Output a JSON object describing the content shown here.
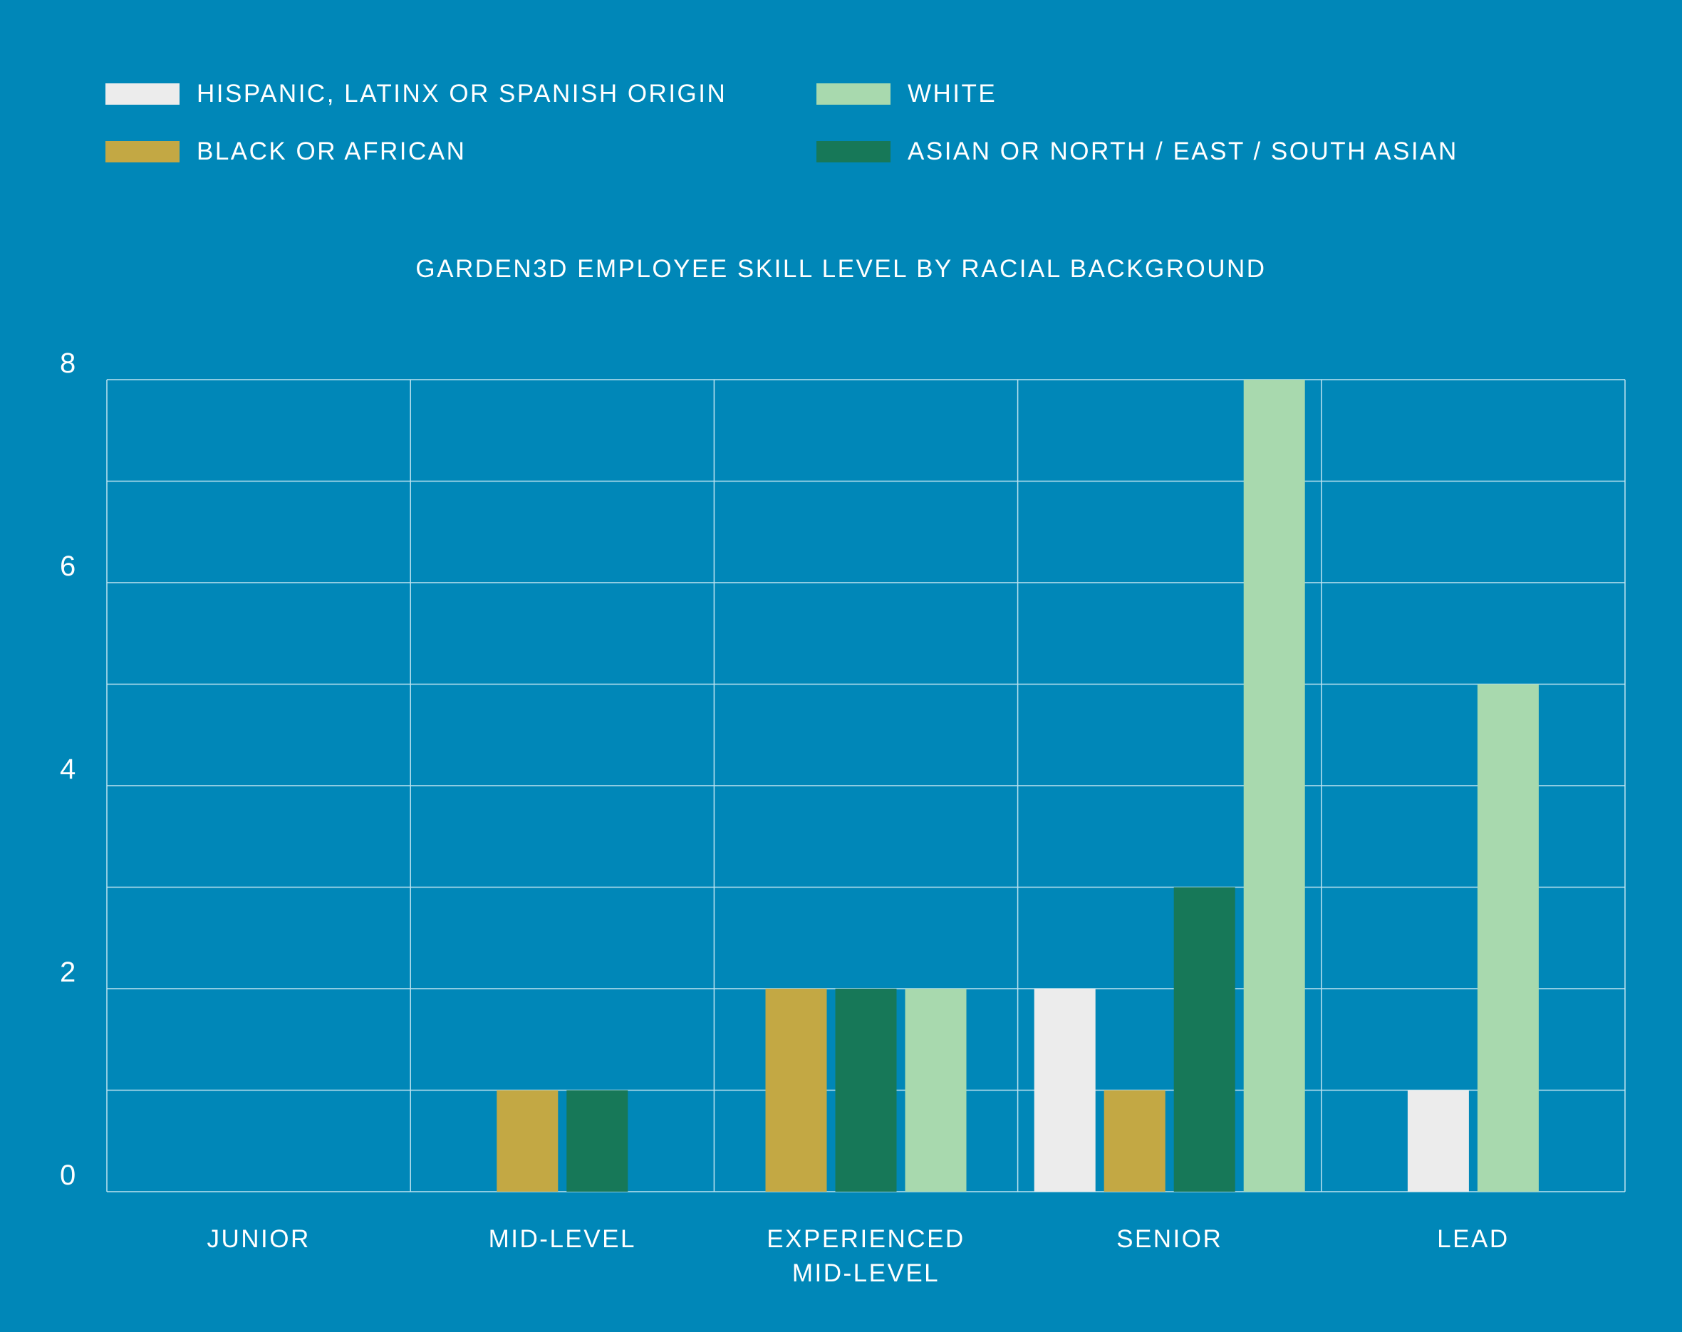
{
  "colors": {
    "background": "#0087b8",
    "grid": "#bde3f0"
  },
  "chart_data": {
    "type": "bar",
    "title": "GARDEN3D EMPLOYEE SKILL LEVEL BY RACIAL BACKGROUND",
    "categories": [
      "JUNIOR",
      "MID-LEVEL",
      "EXPERIENCED MID-LEVEL",
      "SENIOR",
      "LEAD"
    ],
    "category_lines": [
      [
        "JUNIOR"
      ],
      [
        "MID-LEVEL"
      ],
      [
        "EXPERIENCED",
        "MID-LEVEL"
      ],
      [
        "SENIOR"
      ],
      [
        "LEAD"
      ]
    ],
    "series": [
      {
        "name": "HISPANIC, LATINX OR SPANISH ORIGIN",
        "color": "#ececec",
        "values": [
          0,
          0,
          0,
          2,
          1
        ]
      },
      {
        "name": "BLACK OR AFRICAN",
        "color": "#c3a844",
        "values": [
          0,
          1,
          2,
          1,
          0
        ]
      },
      {
        "name": "ASIAN OR NORTH / EAST / SOUTH ASIAN",
        "color": "#177858",
        "values": [
          0,
          1,
          2,
          3,
          0
        ]
      },
      {
        "name": "WHITE",
        "color": "#a8d9ae",
        "values": [
          0,
          0,
          2,
          8,
          5
        ]
      }
    ],
    "ylim": [
      0,
      8
    ],
    "yticks": [
      0,
      2,
      4,
      6,
      8
    ],
    "grid": true,
    "legend_position": "top"
  }
}
